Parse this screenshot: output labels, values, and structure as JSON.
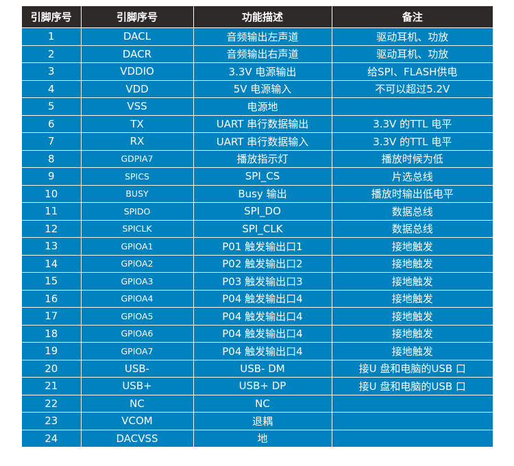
{
  "headers": [
    "引脚序号",
    "引脚序号",
    "功能描述",
    "备注"
  ],
  "colors": {
    "header_bg": "#2d2a29",
    "row_bg": "#0082bf",
    "text": "#ffffff"
  },
  "rows": [
    {
      "no": "1",
      "pin": "DACL",
      "func": "音频输出左声道",
      "note": "驱动耳机、功放",
      "small": false
    },
    {
      "no": "2",
      "pin": "DACR",
      "func": "音频输出右声道",
      "note": "驱动耳机、功放",
      "small": false
    },
    {
      "no": "3",
      "pin": "VDDIO",
      "func": "3.3V 电源输出",
      "note": "给SPI、FLASH供电",
      "small": false
    },
    {
      "no": "4",
      "pin": "VDD",
      "func": "5V 电源输入",
      "note": "不可以超过5.2V",
      "small": false
    },
    {
      "no": "5",
      "pin": "VSS",
      "func": "电源地",
      "note": "",
      "small": false
    },
    {
      "no": "6",
      "pin": "TX",
      "func": "UART 串行数据输出",
      "note": "3.3V 的TTL 电平",
      "small": false
    },
    {
      "no": "7",
      "pin": "RX",
      "func": "UART 串行数据输入",
      "note": "3.3V 的TTL 电平",
      "small": false
    },
    {
      "no": "8",
      "pin": "GDPIA7",
      "func": "播放指示灯",
      "note": "播放时候为低",
      "small": true
    },
    {
      "no": "9",
      "pin": "SPICS",
      "func": "SPI_CS",
      "note": "片选总线",
      "small": true
    },
    {
      "no": "10",
      "pin": "BUSY",
      "func": "Busy 输出",
      "note": "播放时输出低电平",
      "small": true
    },
    {
      "no": "11",
      "pin": "SPIDO",
      "func": "SPI_DO",
      "note": "数据总线",
      "small": true
    },
    {
      "no": "12",
      "pin": "SPICLK",
      "func": "SPI_CLK",
      "note": "数据总线",
      "small": true
    },
    {
      "no": "13",
      "pin": "GPIOA1",
      "func": "P01 触发输出口1",
      "note": "接地触发",
      "small": true
    },
    {
      "no": "14",
      "pin": "GPIOA2",
      "func": "P02 触发输出口2",
      "note": "接地触发",
      "small": true
    },
    {
      "no": "15",
      "pin": "GPIOA3",
      "func": "P03 触发输出口3",
      "note": "接地触发",
      "small": true
    },
    {
      "no": "16",
      "pin": "GPIOA4",
      "func": "P04 触发输出口4",
      "note": "接地触发",
      "small": true
    },
    {
      "no": "17",
      "pin": "GPIOA5",
      "func": "P04 触发输出口4",
      "note": "接地触发",
      "small": true
    },
    {
      "no": "18",
      "pin": "GPIOA6",
      "func": "P04 触发输出口4",
      "note": "接地触发",
      "small": true
    },
    {
      "no": "19",
      "pin": "GPIOA7",
      "func": "P04 触发输出口4",
      "note": "接地触发",
      "small": true
    },
    {
      "no": "20",
      "pin": "USB-",
      "func": "USB- DM",
      "note": "接U 盘和电脑的USB 口",
      "small": false
    },
    {
      "no": "21",
      "pin": "USB+",
      "func": "USB+ DP",
      "note": "接U 盘和电脑的USB 口",
      "small": false
    },
    {
      "no": "22",
      "pin": "NC",
      "func": "NC",
      "note": "",
      "small": false
    },
    {
      "no": "23",
      "pin": "VCOM",
      "func": "退耦",
      "note": "",
      "small": false
    },
    {
      "no": "24",
      "pin": "DACVSS",
      "func": "地",
      "note": "",
      "small": false
    }
  ]
}
